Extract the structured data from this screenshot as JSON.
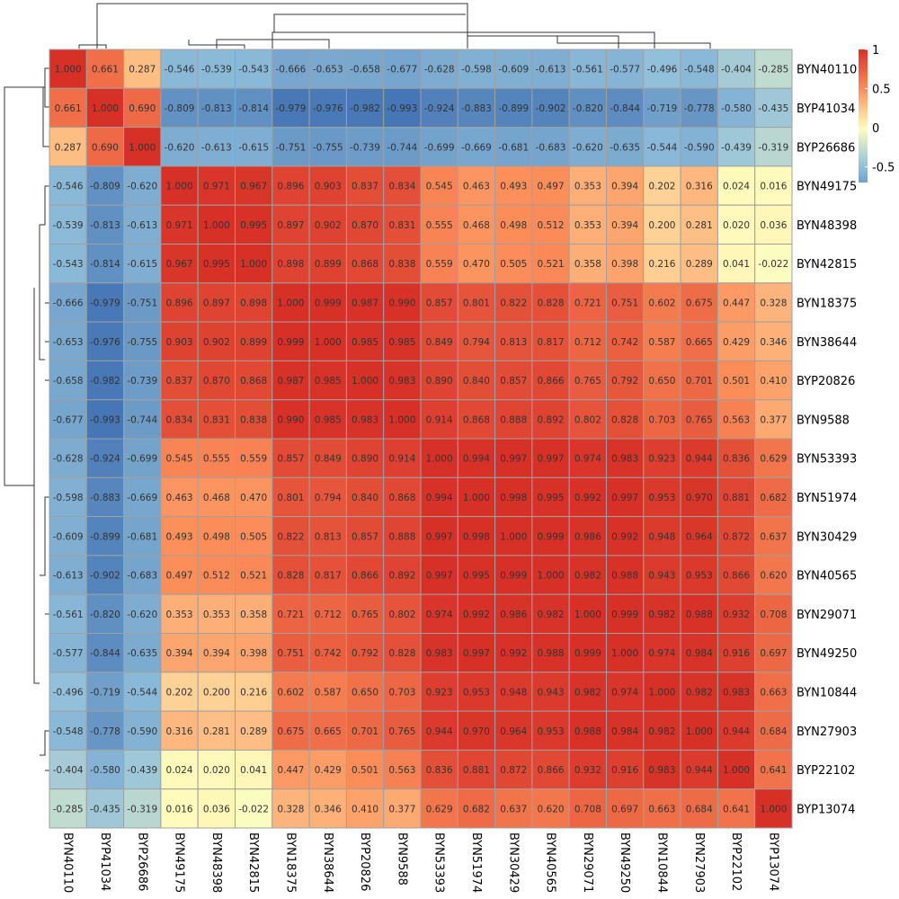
{
  "chart_data": {
    "type": "heatmap",
    "title": "",
    "labels": [
      "BYN40110",
      "BYP41034",
      "BYP26686",
      "BYN49175",
      "BYN48398",
      "BYN42815",
      "BYN18375",
      "BYN38644",
      "BYP20826",
      "BYN9588",
      "BYN53393",
      "BYN51974",
      "BYN30429",
      "BYN40565",
      "BYN29071",
      "BYN49250",
      "BYN10844",
      "BYN27903",
      "BYP22102",
      "BYP13074"
    ],
    "matrix": [
      [
        "1.000",
        "0.661",
        "0.287",
        "-0.546",
        "-0.539",
        "-0.543",
        "-0.666",
        "-0.653",
        "-0.658",
        "-0.677",
        "-0.628",
        "-0.598",
        "-0.609",
        "-0.613",
        "-0.561",
        "-0.577",
        "-0.496",
        "-0.548",
        "-0.404",
        "-0.285"
      ],
      [
        "0.661",
        "1.000",
        "0.690",
        "-0.809",
        "-0.813",
        "-0.814",
        "-0.979",
        "-0.976",
        "-0.982",
        "-0.993",
        "-0.924",
        "-0.883",
        "-0.899",
        "-0.902",
        "-0.820",
        "-0.844",
        "-0.719",
        "-0.778",
        "-0.580",
        "-0.435"
      ],
      [
        "0.287",
        "0.690",
        "1.000",
        "-0.620",
        "-0.613",
        "-0.615",
        "-0.751",
        "-0.755",
        "-0.739",
        "-0.744",
        "-0.699",
        "-0.669",
        "-0.681",
        "-0.683",
        "-0.620",
        "-0.635",
        "-0.544",
        "-0.590",
        "-0.439",
        "-0.319"
      ],
      [
        "-0.546",
        "-0.809",
        "-0.620",
        "1.000",
        "0.971",
        "0.967",
        "0.896",
        "0.903",
        "0.837",
        "0.834",
        "0.545",
        "0.463",
        "0.493",
        "0.497",
        "0.353",
        "0.394",
        "0.202",
        "0.316",
        "0.024",
        "0.016"
      ],
      [
        "-0.539",
        "-0.813",
        "-0.613",
        "0.971",
        "1.000",
        "0.995",
        "0.897",
        "0.902",
        "0.870",
        "0.831",
        "0.555",
        "0.468",
        "0.498",
        "0.512",
        "0.353",
        "0.394",
        "0.200",
        "0.281",
        "0.020",
        "0.036"
      ],
      [
        "-0.543",
        "-0.814",
        "-0.615",
        "0.967",
        "0.995",
        "1.000",
        "0.898",
        "0.899",
        "0.868",
        "0.838",
        "0.559",
        "0.470",
        "0.505",
        "0.521",
        "0.358",
        "0.398",
        "0.216",
        "0.289",
        "0.041",
        "-0.022"
      ],
      [
        "-0.666",
        "-0.979",
        "-0.751",
        "0.896",
        "0.897",
        "0.898",
        "1.000",
        "0.999",
        "0.987",
        "0.990",
        "0.857",
        "0.801",
        "0.822",
        "0.828",
        "0.721",
        "0.751",
        "0.602",
        "0.675",
        "0.447",
        "0.328"
      ],
      [
        "-0.653",
        "-0.976",
        "-0.755",
        "0.903",
        "0.902",
        "0.899",
        "0.999",
        "1.000",
        "0.985",
        "0.985",
        "0.849",
        "0.794",
        "0.813",
        "0.817",
        "0.712",
        "0.742",
        "0.587",
        "0.665",
        "0.429",
        "0.346"
      ],
      [
        "-0.658",
        "-0.982",
        "-0.739",
        "0.837",
        "0.870",
        "0.868",
        "0.987",
        "0.985",
        "1.000",
        "0.983",
        "0.890",
        "0.840",
        "0.857",
        "0.866",
        "0.765",
        "0.792",
        "0.650",
        "0.701",
        "0.501",
        "0.410"
      ],
      [
        "-0.677",
        "-0.993",
        "-0.744",
        "0.834",
        "0.831",
        "0.838",
        "0.990",
        "0.985",
        "0.983",
        "1.000",
        "0.914",
        "0.868",
        "0.888",
        "0.892",
        "0.802",
        "0.828",
        "0.703",
        "0.765",
        "0.563",
        "0.377"
      ],
      [
        "-0.628",
        "-0.924",
        "-0.699",
        "0.545",
        "0.555",
        "0.559",
        "0.857",
        "0.849",
        "0.890",
        "0.914",
        "1.000",
        "0.994",
        "0.997",
        "0.997",
        "0.974",
        "0.983",
        "0.923",
        "0.944",
        "0.836",
        "0.629"
      ],
      [
        "-0.598",
        "-0.883",
        "-0.669",
        "0.463",
        "0.468",
        "0.470",
        "0.801",
        "0.794",
        "0.840",
        "0.868",
        "0.994",
        "1.000",
        "0.998",
        "0.995",
        "0.992",
        "0.997",
        "0.953",
        "0.970",
        "0.881",
        "0.682"
      ],
      [
        "-0.609",
        "-0.899",
        "-0.681",
        "0.493",
        "0.498",
        "0.505",
        "0.822",
        "0.813",
        "0.857",
        "0.888",
        "0.997",
        "0.998",
        "1.000",
        "0.999",
        "0.986",
        "0.992",
        "0.948",
        "0.964",
        "0.872",
        "0.637"
      ],
      [
        "-0.613",
        "-0.902",
        "-0.683",
        "0.497",
        "0.512",
        "0.521",
        "0.828",
        "0.817",
        "0.866",
        "0.892",
        "0.997",
        "0.995",
        "0.999",
        "1.000",
        "0.982",
        "0.988",
        "0.943",
        "0.953",
        "0.866",
        "0.620"
      ],
      [
        "-0.561",
        "-0.820",
        "-0.620",
        "0.353",
        "0.353",
        "0.358",
        "0.721",
        "0.712",
        "0.765",
        "0.802",
        "0.974",
        "0.992",
        "0.986",
        "0.982",
        "1.000",
        "0.999",
        "0.982",
        "0.988",
        "0.932",
        "0.708"
      ],
      [
        "-0.577",
        "-0.844",
        "-0.635",
        "0.394",
        "0.394",
        "0.398",
        "0.751",
        "0.742",
        "0.792",
        "0.828",
        "0.983",
        "0.997",
        "0.992",
        "0.988",
        "0.999",
        "1.000",
        "0.974",
        "0.984",
        "0.916",
        "0.697"
      ],
      [
        "-0.496",
        "-0.719",
        "-0.544",
        "0.202",
        "0.200",
        "0.216",
        "0.602",
        "0.587",
        "0.650",
        "0.703",
        "0.923",
        "0.953",
        "0.948",
        "0.943",
        "0.982",
        "0.974",
        "1.000",
        "0.982",
        "0.983",
        "0.663"
      ],
      [
        "-0.548",
        "-0.778",
        "-0.590",
        "0.316",
        "0.281",
        "0.289",
        "0.675",
        "0.665",
        "0.701",
        "0.765",
        "0.944",
        "0.970",
        "0.964",
        "0.953",
        "0.988",
        "0.984",
        "0.982",
        "1.000",
        "0.944",
        "0.684"
      ],
      [
        "-0.404",
        "-0.580",
        "-0.439",
        "0.024",
        "0.020",
        "0.041",
        "0.447",
        "0.429",
        "0.501",
        "0.563",
        "0.836",
        "0.881",
        "0.872",
        "0.866",
        "0.932",
        "0.916",
        "0.983",
        "0.944",
        "1.000",
        "0.641"
      ],
      [
        "-0.285",
        "-0.435",
        "-0.319",
        "0.016",
        "0.036",
        "-0.022",
        "0.328",
        "0.346",
        "0.410",
        "0.377",
        "0.629",
        "0.682",
        "0.637",
        "0.620",
        "0.708",
        "0.697",
        "0.663",
        "0.684",
        "0.641",
        "1.000"
      ]
    ],
    "color_scale": {
      "stops": [
        {
          "value": -1.0,
          "color": "#4575b4"
        },
        {
          "value": -0.5,
          "color": "#91bfdb"
        },
        {
          "value": 0.0,
          "color": "#ffffbf"
        },
        {
          "value": 0.5,
          "color": "#fc8d59"
        },
        {
          "value": 1.0,
          "color": "#d73027"
        }
      ],
      "legend_ticks": [
        "1",
        "0.5",
        "0",
        "-0.5"
      ],
      "legend_range": [
        -0.7,
        1.0
      ]
    },
    "legend_placement": "top-right",
    "row_dendrogram": true,
    "column_dendrogram": true
  }
}
